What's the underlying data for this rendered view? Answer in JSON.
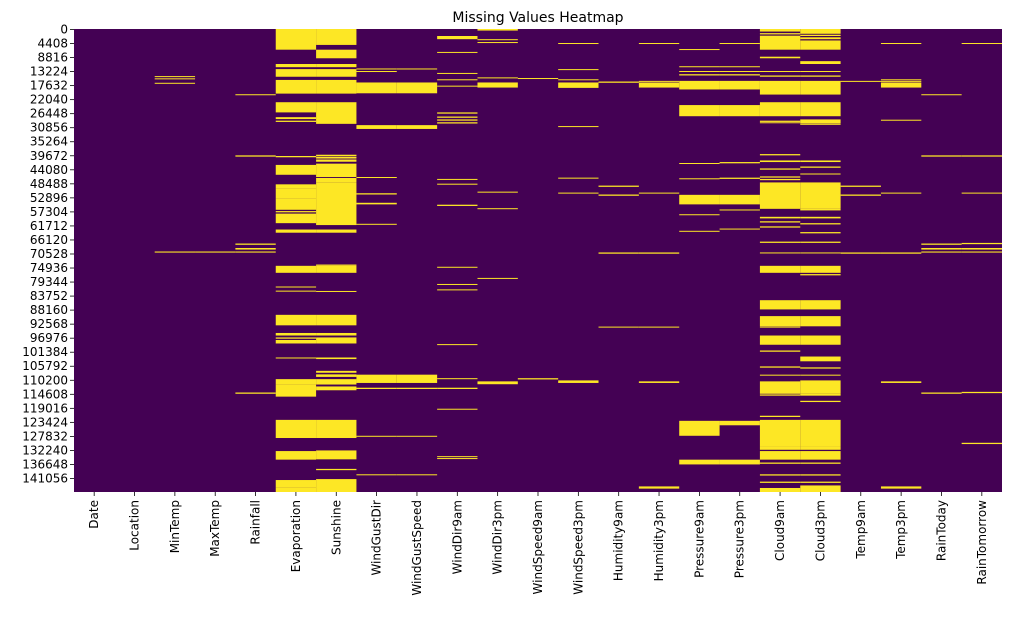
{
  "chart_data": {
    "type": "heatmap",
    "title": "Missing Values Heatmap",
    "xlabel": "",
    "ylabel": "",
    "colorbar": false,
    "colors": {
      "present": "#440154",
      "missing": "#fde725"
    },
    "n_rows": 145460,
    "x_labels": [
      "Date",
      "Location",
      "MinTemp",
      "MaxTemp",
      "Rainfall",
      "Evaporation",
      "Sunshine",
      "WindGustDir",
      "WindGustSpeed",
      "WindDir9am",
      "WindDir3pm",
      "WindSpeed9am",
      "WindSpeed3pm",
      "Humidity9am",
      "Humidity3pm",
      "Pressure9am",
      "Pressure3pm",
      "Cloud9am",
      "Cloud3pm",
      "Temp9am",
      "Temp3pm",
      "RainToday",
      "RainTomorrow"
    ],
    "y_tick_labels": [
      "0",
      "4408",
      "8816",
      "13224",
      "17632",
      "22040",
      "26448",
      "30856",
      "35264",
      "39672",
      "44080",
      "48488",
      "52896",
      "57304",
      "61712",
      "66120",
      "70528",
      "74936",
      "79344",
      "83752",
      "88160",
      "92568",
      "96976",
      "101384",
      "105792",
      "110200",
      "114608",
      "119016",
      "123424",
      "127832",
      "132240",
      "136648",
      "141056"
    ],
    "missing_ranges": {
      "Date": [],
      "Location": [],
      "MinTemp": [
        [
          14800,
          15100
        ],
        [
          15500,
          15800
        ],
        [
          16900,
          17200
        ],
        [
          69900,
          70250
        ]
      ],
      "MaxTemp": [
        [
          69900,
          70250
        ]
      ],
      "Rainfall": [
        [
          20500,
          20800
        ],
        [
          39700,
          40100
        ],
        [
          67400,
          67800
        ],
        [
          68800,
          69300
        ],
        [
          69900,
          70250
        ],
        [
          114200,
          114600
        ]
      ],
      "Evaporation": [
        [
          0,
          6500
        ],
        [
          11000,
          12000
        ],
        [
          12600,
          15000
        ],
        [
          16000,
          20300
        ],
        [
          23000,
          26200
        ],
        [
          27700,
          28300
        ],
        [
          28800,
          29200
        ],
        [
          39900,
          40300
        ],
        [
          42700,
          45800
        ],
        [
          48800,
          50000
        ],
        [
          50000,
          53300
        ],
        [
          53300,
          56800
        ],
        [
          57200,
          57600
        ],
        [
          58000,
          61000
        ],
        [
          63000,
          64000
        ],
        [
          74400,
          76600
        ],
        [
          80900,
          81200
        ],
        [
          82200,
          82500
        ],
        [
          89800,
          93100
        ],
        [
          95500,
          96300
        ],
        [
          96900,
          97300
        ],
        [
          97700,
          98800
        ],
        [
          103200,
          103500
        ],
        [
          110000,
          111800
        ],
        [
          111800,
          115500
        ],
        [
          122800,
          128500
        ],
        [
          132600,
          135300
        ],
        [
          141700,
          144000
        ],
        [
          144000,
          145460
        ]
      ],
      "Sunshine": [
        [
          0,
          4400
        ],
        [
          4400,
          5000
        ],
        [
          6500,
          9200
        ],
        [
          11000,
          12000
        ],
        [
          12600,
          15000
        ],
        [
          16000,
          20300
        ],
        [
          23000,
          29800
        ],
        [
          39500,
          39900
        ],
        [
          40100,
          40700
        ],
        [
          41000,
          41700
        ],
        [
          42300,
          46500
        ],
        [
          46800,
          48300
        ],
        [
          48300,
          61600
        ],
        [
          63000,
          64000
        ],
        [
          74000,
          74400
        ],
        [
          74400,
          76600
        ],
        [
          82300,
          82600
        ],
        [
          89800,
          93100
        ],
        [
          95500,
          96300
        ],
        [
          96900,
          98800
        ],
        [
          103200,
          103700
        ],
        [
          107400,
          108000
        ],
        [
          108500,
          109300
        ],
        [
          110000,
          111700
        ],
        [
          112300,
          113500
        ],
        [
          122800,
          128500
        ],
        [
          132400,
          135200
        ],
        [
          138200,
          138600
        ],
        [
          141400,
          145460
        ]
      ],
      "WindGustDir": [
        [
          12400,
          12700
        ],
        [
          13200,
          13500
        ],
        [
          16800,
          20200
        ],
        [
          30200,
          31400
        ],
        [
          46500,
          46800
        ],
        [
          51600,
          52000
        ],
        [
          54600,
          55100
        ],
        [
          61200,
          61500
        ],
        [
          108600,
          111200
        ],
        [
          112700,
          113100
        ],
        [
          127800,
          128100
        ],
        [
          139900,
          140200
        ]
      ],
      "WindGustSpeed": [
        [
          12400,
          12700
        ],
        [
          16800,
          20200
        ],
        [
          30200,
          31400
        ],
        [
          108600,
          111200
        ],
        [
          112700,
          113100
        ],
        [
          127800,
          128100
        ],
        [
          139900,
          140200
        ]
      ],
      "WindDir9am": [
        [
          2200,
          3200
        ],
        [
          7200,
          7500
        ],
        [
          13800,
          14100
        ],
        [
          15800,
          16100
        ],
        [
          17800,
          18100
        ],
        [
          26200,
          26600
        ],
        [
          27500,
          27900
        ],
        [
          28400,
          28800
        ],
        [
          29300,
          29700
        ],
        [
          47100,
          47400
        ],
        [
          48600,
          48900
        ],
        [
          55200,
          55600
        ],
        [
          74700,
          75000
        ],
        [
          80100,
          80400
        ],
        [
          81800,
          82100
        ],
        [
          99000,
          99300
        ],
        [
          109700,
          110000
        ],
        [
          112700,
          113100
        ],
        [
          119300,
          119600
        ],
        [
          134200,
          134500
        ],
        [
          134800,
          135100
        ]
      ],
      "WindDir3pm": [
        [
          0,
          500
        ],
        [
          3200,
          3500
        ],
        [
          4100,
          4400
        ],
        [
          15200,
          15500
        ],
        [
          16800,
          18400
        ],
        [
          51100,
          51400
        ],
        [
          56300,
          56600
        ],
        [
          78200,
          78500
        ],
        [
          110700,
          111600
        ]
      ],
      "WindSpeed9am": [
        [
          15400,
          15700
        ],
        [
          109700,
          110100
        ]
      ],
      "WindSpeed3pm": [
        [
          4400,
          4700
        ],
        [
          12600,
          12900
        ],
        [
          15800,
          16100
        ],
        [
          16800,
          18500
        ],
        [
          30500,
          30800
        ],
        [
          46700,
          47000
        ],
        [
          51400,
          51700
        ],
        [
          110400,
          111200
        ]
      ],
      "Humidity9am": [
        [
          16500,
          16900
        ],
        [
          49200,
          49600
        ],
        [
          52000,
          52400
        ],
        [
          70200,
          70600
        ],
        [
          93500,
          93800
        ]
      ],
      "Humidity3pm": [
        [
          4400,
          4700
        ],
        [
          16300,
          16600
        ],
        [
          16800,
          18400
        ],
        [
          51400,
          51700
        ],
        [
          70200,
          70600
        ],
        [
          93500,
          93800
        ],
        [
          110700,
          111200
        ],
        [
          143700,
          144400
        ]
      ],
      "Pressure9am": [
        [
          6300,
          6600
        ],
        [
          11700,
          12000
        ],
        [
          13200,
          13500
        ],
        [
          14200,
          14600
        ],
        [
          16300,
          19000
        ],
        [
          23900,
          27400
        ],
        [
          42100,
          42400
        ],
        [
          46900,
          47200
        ],
        [
          52100,
          55100
        ],
        [
          58200,
          58500
        ],
        [
          63400,
          63700
        ],
        [
          123100,
          127800
        ],
        [
          135300,
          136800
        ]
      ],
      "Pressure3pm": [
        [
          4400,
          4700
        ],
        [
          11700,
          12000
        ],
        [
          13200,
          13500
        ],
        [
          14200,
          14600
        ],
        [
          16300,
          19000
        ],
        [
          23900,
          27400
        ],
        [
          41800,
          42200
        ],
        [
          46700,
          47100
        ],
        [
          52100,
          55100
        ],
        [
          56700,
          57000
        ],
        [
          62700,
          63000
        ],
        [
          123100,
          124500
        ],
        [
          135300,
          136800
        ]
      ],
      "Cloud9am": [
        [
          0,
          800
        ],
        [
          1300,
          1700
        ],
        [
          2100,
          6500
        ],
        [
          8700,
          9200
        ],
        [
          13200,
          13500
        ],
        [
          14600,
          15000
        ],
        [
          16300,
          20600
        ],
        [
          23000,
          27400
        ],
        [
          28800,
          29200
        ],
        [
          29300,
          29600
        ],
        [
          39300,
          39700
        ],
        [
          41300,
          41800
        ],
        [
          43800,
          44200
        ],
        [
          46300,
          46700
        ],
        [
          47100,
          47500
        ],
        [
          48200,
          56500
        ],
        [
          59000,
          59500
        ],
        [
          60400,
          60800
        ],
        [
          62000,
          62400
        ],
        [
          66800,
          67200
        ],
        [
          70200,
          70500
        ],
        [
          74400,
          76600
        ],
        [
          85200,
          88100
        ],
        [
          90200,
          93400
        ],
        [
          93500,
          93800
        ],
        [
          96300,
          99200
        ],
        [
          101000,
          101400
        ],
        [
          106000,
          106400
        ],
        [
          108600,
          108900
        ],
        [
          110700,
          114600
        ],
        [
          114800,
          115200
        ],
        [
          121500,
          121900
        ],
        [
          122800,
          131300
        ],
        [
          131300,
          132200
        ],
        [
          132600,
          135300
        ],
        [
          136200,
          136600
        ],
        [
          139900,
          140300
        ],
        [
          142200,
          142600
        ],
        [
          144200,
          145460
        ]
      ],
      "Cloud3pm": [
        [
          0,
          1500
        ],
        [
          1800,
          2200
        ],
        [
          2600,
          3200
        ],
        [
          3600,
          6500
        ],
        [
          10100,
          11000
        ],
        [
          13200,
          13500
        ],
        [
          14600,
          15000
        ],
        [
          16300,
          20600
        ],
        [
          23000,
          27400
        ],
        [
          28400,
          29600
        ],
        [
          29700,
          30100
        ],
        [
          41300,
          41800
        ],
        [
          43200,
          43600
        ],
        [
          45400,
          45700
        ],
        [
          48200,
          56500
        ],
        [
          56500,
          57000
        ],
        [
          59000,
          59500
        ],
        [
          61000,
          61400
        ],
        [
          63800,
          64200
        ],
        [
          66800,
          67200
        ],
        [
          70200,
          70500
        ],
        [
          74400,
          76600
        ],
        [
          77000,
          77400
        ],
        [
          85200,
          88100
        ],
        [
          90200,
          93400
        ],
        [
          96300,
          99200
        ],
        [
          102900,
          104400
        ],
        [
          106300,
          106700
        ],
        [
          108600,
          108900
        ],
        [
          110400,
          114600
        ],
        [
          114600,
          115200
        ],
        [
          116800,
          117200
        ],
        [
          122800,
          131300
        ],
        [
          131300,
          132200
        ],
        [
          132600,
          135300
        ],
        [
          136200,
          136600
        ],
        [
          139900,
          140300
        ],
        [
          142200,
          142600
        ],
        [
          143400,
          145460
        ]
      ],
      "Temp9am": [
        [
          16300,
          16600
        ],
        [
          49200,
          49600
        ],
        [
          52000,
          52400
        ],
        [
          70200,
          70600
        ]
      ],
      "Temp3pm": [
        [
          4400,
          4700
        ],
        [
          15800,
          16100
        ],
        [
          16300,
          16600
        ],
        [
          16800,
          18400
        ],
        [
          28500,
          28800
        ],
        [
          51400,
          51700
        ],
        [
          70200,
          70600
        ],
        [
          110700,
          111200
        ],
        [
          143700,
          144400
        ]
      ],
      "RainToday": [
        [
          20500,
          20800
        ],
        [
          39700,
          40100
        ],
        [
          67400,
          67800
        ],
        [
          68800,
          69300
        ],
        [
          69900,
          70250
        ],
        [
          114200,
          114600
        ]
      ],
      "RainTomorrow": [
        [
          4400,
          4700
        ],
        [
          39700,
          40100
        ],
        [
          51400,
          51700
        ],
        [
          67200,
          67600
        ],
        [
          68800,
          69300
        ],
        [
          69900,
          70250
        ],
        [
          114000,
          114400
        ],
        [
          130000,
          130400
        ]
      ]
    }
  }
}
